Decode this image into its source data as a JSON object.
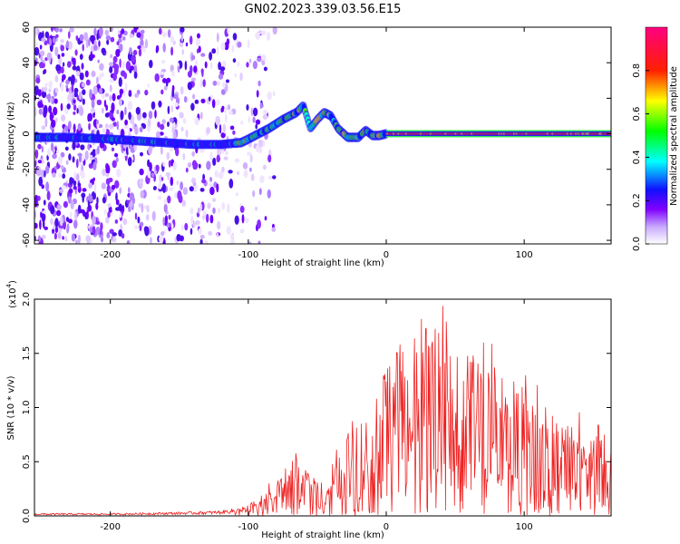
{
  "figure_title": "GN02.2023.339.03.56.E15",
  "chart_data": [
    {
      "type": "heatmap",
      "xlabel": "Height of straight line (km)",
      "ylabel": "Frequency (Hz)",
      "xlim": [
        -255,
        163
      ],
      "ylim": [
        -62,
        60
      ],
      "xticks": [
        -200,
        -100,
        0,
        100
      ],
      "xtick_labels": [
        "-200",
        "-100",
        "0",
        "100"
      ],
      "yticks": [
        60,
        40,
        20,
        0,
        -20,
        -40,
        -60
      ],
      "ytick_labels": [
        "60",
        "40",
        "20",
        "0",
        "-20",
        "-40",
        "-60"
      ],
      "colorbar": {
        "label": "Normalized spectral amplitude",
        "range": [
          0,
          1
        ],
        "ticks": [
          0,
          0.2,
          0.4,
          0.6,
          0.8
        ],
        "tick_labels": [
          "0.0",
          "0.2",
          "0.4",
          "0.6",
          "0.8"
        ],
        "colormap": [
          "#ffffff",
          "#d8c8f8",
          "#7a00ff",
          "#2200ff",
          "#00ffff",
          "#00ff00",
          "#ffff00",
          "#ff0000",
          "#ff0080"
        ]
      },
      "ridge": {
        "x": [
          -255,
          -230,
          -200,
          -180,
          -160,
          -140,
          -120,
          -105,
          -95,
          -85,
          -75,
          -65,
          -60,
          -55,
          -50,
          -45,
          -40,
          -35,
          -28,
          -20,
          -15,
          -10,
          -5,
          0,
          20,
          50,
          100,
          150,
          163
        ],
        "freq": [
          -2,
          -2,
          -3,
          -4,
          -5,
          -6,
          -6,
          -5,
          -1,
          3,
          8,
          12,
          16,
          3,
          8,
          12,
          10,
          3,
          -2,
          -2,
          2,
          -1,
          -1,
          0,
          0,
          0,
          0,
          0,
          0
        ]
      },
      "noise_region_x": [
        -255,
        -110
      ],
      "grid": false
    },
    {
      "type": "line",
      "xlabel": "Height of straight line (km)",
      "ylabel": "SNR (10 * v/v)",
      "y_multiplier_label": "(x10",
      "y_multiplier_exp": "4",
      "y_multiplier_close": ")",
      "xlim": [
        -255,
        163
      ],
      "ylim": [
        0,
        2.0
      ],
      "xticks": [
        -200,
        -100,
        0,
        100
      ],
      "xtick_labels": [
        "-200",
        "-100",
        "0",
        "100"
      ],
      "yticks": [
        0,
        0.5,
        1.0,
        1.5,
        2.0
      ],
      "ytick_labels": [
        "0.0",
        "0.5",
        "1.0",
        "1.5",
        "2.0"
      ],
      "color": "#ee2222",
      "envelope": {
        "x": [
          -255,
          -200,
          -150,
          -120,
          -100,
          -85,
          -75,
          -65,
          -55,
          -45,
          -35,
          -30,
          -25,
          -15,
          -5,
          5,
          15,
          25,
          35,
          45,
          60,
          80,
          100,
          120,
          140,
          163
        ],
        "y": [
          0.02,
          0.02,
          0.03,
          0.04,
          0.08,
          0.22,
          0.35,
          0.45,
          0.3,
          0.22,
          0.55,
          0.65,
          0.75,
          0.85,
          1.0,
          1.25,
          1.4,
          1.55,
          1.45,
          1.35,
          1.25,
          1.15,
          1.0,
          0.85,
          0.7,
          0.55
        ]
      },
      "grid": false
    }
  ]
}
